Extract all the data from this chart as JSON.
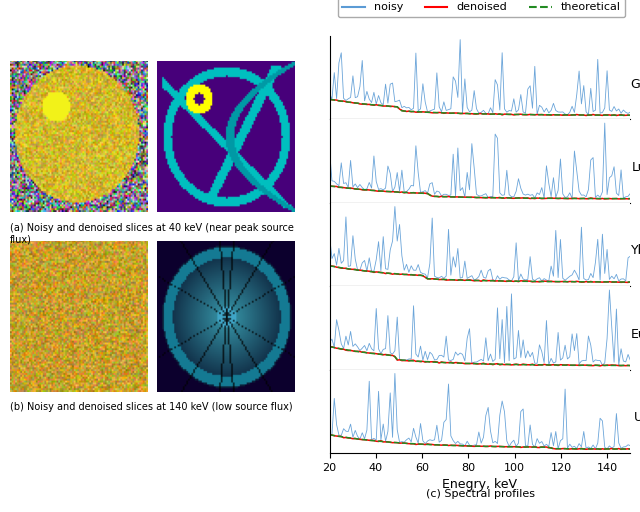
{
  "figure_width": 6.4,
  "figure_height": 5.12,
  "dpi": 100,
  "bottom_label": "(c) Spectral profiles",
  "subplot_labels": [
    "Gd",
    "Lu",
    "Yb",
    "Eu",
    "U"
  ],
  "xlabel": "Enegry, keV",
  "legend_labels": [
    "noisy",
    "denoised",
    "theoretical"
  ],
  "noisy_color": "#5b9bd5",
  "denoised_color": "#ff0000",
  "theoretical_color": "#228b22",
  "xmin": 20,
  "xmax": 150,
  "energy_ticks": [
    20,
    40,
    60,
    80,
    100,
    120,
    140
  ],
  "caption_a": "(a) Noisy and denoised slices at 40 keV (near peak source\nflux)",
  "caption_b": "(b) Noisy and denoised slices at 140 keV (low source flux)",
  "seed": 42
}
